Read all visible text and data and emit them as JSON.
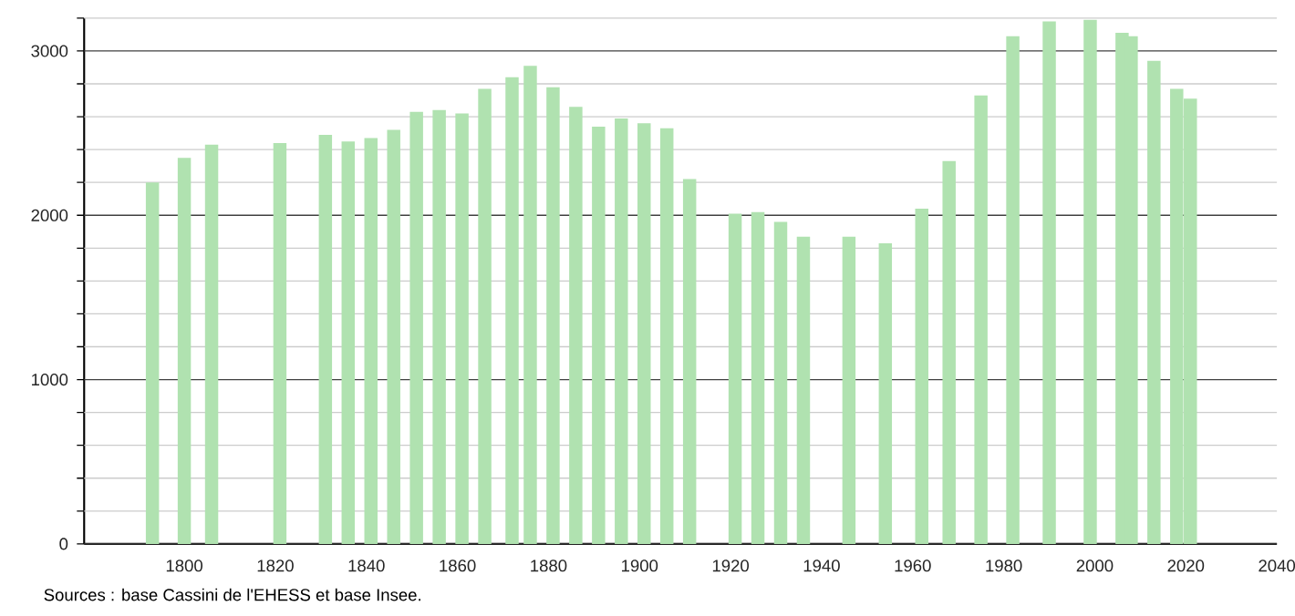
{
  "chart_data": {
    "type": "bar",
    "x": [
      1793,
      1800,
      1806,
      1821,
      1831,
      1836,
      1841,
      1846,
      1851,
      1856,
      1861,
      1866,
      1872,
      1876,
      1881,
      1886,
      1891,
      1896,
      1901,
      1906,
      1911,
      1921,
      1926,
      1931,
      1936,
      1946,
      1954,
      1962,
      1968,
      1975,
      1982,
      1990,
      1999,
      2006,
      2008,
      2013,
      2018,
      2021
    ],
    "values": [
      2200,
      2350,
      2430,
      2440,
      2490,
      2450,
      2470,
      2520,
      2630,
      2640,
      2620,
      2770,
      2840,
      2910,
      2780,
      2660,
      2540,
      2590,
      2560,
      2530,
      2220,
      2010,
      2020,
      1960,
      1870,
      1870,
      1830,
      2040,
      2330,
      2730,
      3090,
      3180,
      3190,
      3110,
      3090,
      2940,
      2770,
      2710
    ],
    "color": "#b0e2b0",
    "xlim": [
      1778,
      2040
    ],
    "xticks": [
      1800,
      1820,
      1840,
      1860,
      1880,
      1900,
      1920,
      1940,
      1960,
      1980,
      2000,
      2020,
      2040
    ],
    "ylim": [
      0,
      3200
    ],
    "yticks": [
      0,
      {
        "value": 200,
        "label": null
      },
      {
        "value": 400,
        "label": null
      },
      {
        "value": 600,
        "label": null
      },
      {
        "value": 800,
        "label": null
      },
      1000,
      {
        "value": 1200,
        "label": null
      },
      {
        "value": 1400,
        "label": null
      },
      {
        "value": 1600,
        "label": null
      },
      {
        "value": 1800,
        "label": null
      },
      2000,
      {
        "value": 2200,
        "label": null
      },
      {
        "value": 2400,
        "label": null
      },
      {
        "value": 2600,
        "label": null
      },
      {
        "value": 2800,
        "label": null
      },
      3000,
      {
        "value": 3200,
        "label": null
      }
    ],
    "grid": "y",
    "annotations": [
      "Sources : base Cassini de l'EHESS et base Insee."
    ]
  }
}
